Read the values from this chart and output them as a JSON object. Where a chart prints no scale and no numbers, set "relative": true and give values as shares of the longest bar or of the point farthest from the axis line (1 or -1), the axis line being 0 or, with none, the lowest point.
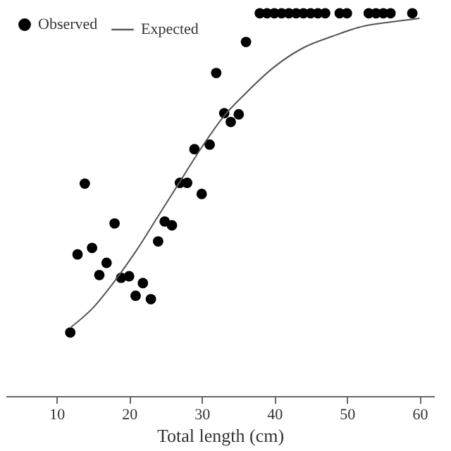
{
  "chart_data": {
    "type": "scatter",
    "xlabel": "Total length (cm)",
    "relative": true,
    "xlim": [
      3,
      62
    ],
    "xticks": [
      10,
      20,
      30,
      40,
      50,
      60
    ],
    "grid": false,
    "legend": "top left",
    "series": [
      {
        "name": "Observed",
        "marker": "circle",
        "color": "#000000",
        "x": [
          38,
          39,
          40,
          41,
          42,
          43,
          44,
          45,
          46,
          47,
          49,
          50,
          53,
          54,
          55,
          56,
          59,
          36.1,
          32.0,
          33.1,
          35.1,
          34.0,
          29.0,
          31.1,
          13.9,
          27.0,
          28.0,
          30.0,
          18.0,
          24.9,
          25.9,
          12.9,
          14.9,
          16.9,
          15.9,
          18.9,
          20.0,
          24.0,
          21.9,
          20.9,
          23.0,
          11.9
        ],
        "values": [
          1,
          1,
          1,
          1,
          1,
          1,
          1,
          1,
          1,
          1,
          1,
          1,
          1,
          1,
          1,
          1,
          1,
          0.925,
          0.844,
          0.739,
          0.736,
          0.716,
          0.645,
          0.657,
          0.555,
          0.557,
          0.557,
          0.528,
          0.451,
          0.456,
          0.446,
          0.37,
          0.387,
          0.348,
          0.316,
          0.309,
          0.313,
          0.404,
          0.295,
          0.262,
          0.253,
          0.166
        ]
      },
      {
        "name": "Expected",
        "type": "line",
        "color": "#555555",
        "line_style": "solid",
        "x": [
          12,
          15,
          18,
          21,
          24,
          27,
          30,
          33,
          36,
          40,
          44,
          48,
          52,
          56,
          60
        ],
        "values": [
          0.18,
          0.23,
          0.3,
          0.38,
          0.47,
          0.56,
          0.65,
          0.73,
          0.79,
          0.86,
          0.91,
          0.94,
          0.965,
          0.977,
          0.987
        ]
      }
    ]
  }
}
